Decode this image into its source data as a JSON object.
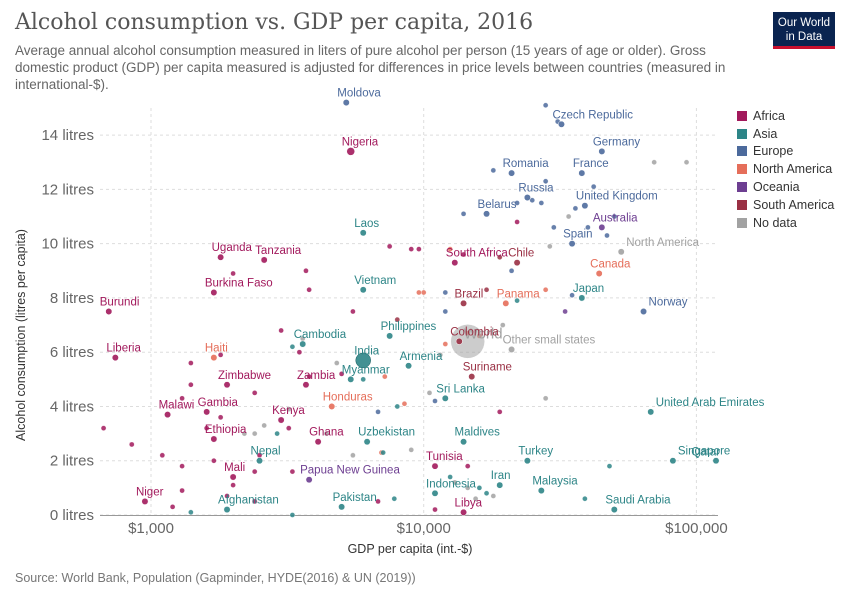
{
  "header": {
    "title": "Alcohol consumption vs. GDP per capita, 2016",
    "subtitle": "Average annual alcohol consumption measured in liters of pure alcohol per person (15 years of age or older). Gross domestic product (GDP) per capita measured is adjusted for differences in price levels between countries (measured in international-$)."
  },
  "logo": {
    "line1": "Our World",
    "line2": "in Data"
  },
  "footer": {
    "source": "Source: World Bank, Population (Gapminder, HYDE(2016) & UN (2019))"
  },
  "colors": {
    "Africa": "#a2195c",
    "Asia": "#2d8587",
    "Europe": "#4c6a9c",
    "North America": "#e56e5a",
    "Oceania": "#6d3e91",
    "South America": "#9a3044",
    "No data": "#a2a2a2"
  },
  "chart_data": {
    "type": "scatter",
    "title": "Alcohol consumption vs. GDP per capita, 2016",
    "xlabel": "GDP per capita (int.-$)",
    "ylabel": "Alcohol consumption (litres per capita)",
    "x_scale": "log",
    "xlim": [
      650,
      120000
    ],
    "ylim": [
      0,
      15
    ],
    "x_ticks": [
      {
        "value": 1000,
        "label": "$1,000"
      },
      {
        "value": 10000,
        "label": "$10,000"
      },
      {
        "value": 100000,
        "label": "$100,000"
      }
    ],
    "y_ticks": [
      {
        "value": 0,
        "label": "0 litres"
      },
      {
        "value": 2,
        "label": "2 litres"
      },
      {
        "value": 4,
        "label": "4 litres"
      },
      {
        "value": 6,
        "label": "6 litres"
      },
      {
        "value": 8,
        "label": "8 litres"
      },
      {
        "value": 10,
        "label": "10 litres"
      },
      {
        "value": 12,
        "label": "12 litres"
      },
      {
        "value": 14,
        "label": "14 litres"
      }
    ],
    "grid": true,
    "legend_position": "right",
    "legend": [
      "Africa",
      "Asia",
      "Europe",
      "North America",
      "Oceania",
      "South America",
      "No data"
    ],
    "labeled_points": [
      {
        "name": "Moldova",
        "region": "Europe",
        "x": 5200,
        "y": 15.2
      },
      {
        "name": "Czech Republic",
        "region": "Europe",
        "x": 32000,
        "y": 14.4
      },
      {
        "name": "Nigeria",
        "region": "Africa",
        "x": 5400,
        "y": 13.4
      },
      {
        "name": "Germany",
        "region": "Europe",
        "x": 45000,
        "y": 13.4
      },
      {
        "name": "Romania",
        "region": "Europe",
        "x": 21000,
        "y": 12.6
      },
      {
        "name": "France",
        "region": "Europe",
        "x": 38000,
        "y": 12.6
      },
      {
        "name": "Russia",
        "region": "Europe",
        "x": 24000,
        "y": 11.7
      },
      {
        "name": "Belarus",
        "region": "Europe",
        "x": 17000,
        "y": 11.1
      },
      {
        "name": "United Kingdom",
        "region": "Europe",
        "x": 39000,
        "y": 11.4
      },
      {
        "name": "Australia",
        "region": "Oceania",
        "x": 45000,
        "y": 10.6
      },
      {
        "name": "Laos",
        "region": "Asia",
        "x": 6000,
        "y": 10.4
      },
      {
        "name": "Spain",
        "region": "Europe",
        "x": 35000,
        "y": 10.0
      },
      {
        "name": "North America",
        "region": "No data",
        "x": 53000,
        "y": 9.7
      },
      {
        "name": "Uganda",
        "region": "Africa",
        "x": 1800,
        "y": 9.5
      },
      {
        "name": "Tanzania",
        "region": "Africa",
        "x": 2600,
        "y": 9.4
      },
      {
        "name": "South Africa",
        "region": "Africa",
        "x": 13000,
        "y": 9.3
      },
      {
        "name": "Chile",
        "region": "South America",
        "x": 22000,
        "y": 9.3
      },
      {
        "name": "Canada",
        "region": "North America",
        "x": 44000,
        "y": 8.9
      },
      {
        "name": "Vietnam",
        "region": "Asia",
        "x": 6000,
        "y": 8.3
      },
      {
        "name": "Burkina Faso",
        "region": "Africa",
        "x": 1700,
        "y": 8.2
      },
      {
        "name": "Brazil",
        "region": "South America",
        "x": 14000,
        "y": 7.8
      },
      {
        "name": "Panama",
        "region": "North America",
        "x": 20000,
        "y": 7.8
      },
      {
        "name": "Japan",
        "region": "Asia",
        "x": 38000,
        "y": 8.0
      },
      {
        "name": "Burundi",
        "region": "Africa",
        "x": 700,
        "y": 7.5
      },
      {
        "name": "Norway",
        "region": "Europe",
        "x": 64000,
        "y": 7.5
      },
      {
        "name": "World",
        "region": "No data",
        "x": 14500,
        "y": 6.4
      },
      {
        "name": "Cambodia",
        "region": "Asia",
        "x": 3600,
        "y": 6.3
      },
      {
        "name": "Philippines",
        "region": "Asia",
        "x": 7500,
        "y": 6.6
      },
      {
        "name": "Other small states",
        "region": "No data",
        "x": 21000,
        "y": 6.1
      },
      {
        "name": "India",
        "region": "Asia",
        "x": 6000,
        "y": 5.7
      },
      {
        "name": "Liberia",
        "region": "Africa",
        "x": 740,
        "y": 5.8
      },
      {
        "name": "Haiti",
        "region": "North America",
        "x": 1700,
        "y": 5.8
      },
      {
        "name": "Colombia",
        "region": "South America",
        "x": 13500,
        "y": 6.4
      },
      {
        "name": "Armenia",
        "region": "Asia",
        "x": 8800,
        "y": 5.5
      },
      {
        "name": "Suriname",
        "region": "South America",
        "x": 15000,
        "y": 5.1
      },
      {
        "name": "Myanmar",
        "region": "Asia",
        "x": 5400,
        "y": 5.0
      },
      {
        "name": "Zimbabwe",
        "region": "Africa",
        "x": 1900,
        "y": 4.8
      },
      {
        "name": "Zambia",
        "region": "Africa",
        "x": 3700,
        "y": 4.8
      },
      {
        "name": "Sri Lanka",
        "region": "Asia",
        "x": 12000,
        "y": 4.3
      },
      {
        "name": "Honduras",
        "region": "North America",
        "x": 4600,
        "y": 4.0
      },
      {
        "name": "United Arab Emirates",
        "region": "Asia",
        "x": 68000,
        "y": 3.8
      },
      {
        "name": "Malawi",
        "region": "Africa",
        "x": 1150,
        "y": 3.7
      },
      {
        "name": "Gambia",
        "region": "Africa",
        "x": 1600,
        "y": 3.8
      },
      {
        "name": "Kenya",
        "region": "Africa",
        "x": 3000,
        "y": 3.5
      },
      {
        "name": "Ethiopia",
        "region": "Africa",
        "x": 1700,
        "y": 2.8
      },
      {
        "name": "Ghana",
        "region": "Africa",
        "x": 4100,
        "y": 2.7
      },
      {
        "name": "Uzbekistan",
        "region": "Asia",
        "x": 6200,
        "y": 2.7
      },
      {
        "name": "Maldives",
        "region": "Asia",
        "x": 14000,
        "y": 2.7
      },
      {
        "name": "Nepal",
        "region": "Asia",
        "x": 2500,
        "y": 2.0
      },
      {
        "name": "Tunisia",
        "region": "Africa",
        "x": 11000,
        "y": 1.8
      },
      {
        "name": "Turkey",
        "region": "Asia",
        "x": 24000,
        "y": 2.0
      },
      {
        "name": "Singapore",
        "region": "Asia",
        "x": 82000,
        "y": 2.0
      },
      {
        "name": "Qatar",
        "region": "Asia",
        "x": 118000,
        "y": 2.0
      },
      {
        "name": "Mali",
        "region": "Africa",
        "x": 2000,
        "y": 1.4
      },
      {
        "name": "Papua New Guinea",
        "region": "Oceania",
        "x": 3800,
        "y": 1.3
      },
      {
        "name": "Iran",
        "region": "Asia",
        "x": 19000,
        "y": 1.1
      },
      {
        "name": "Malaysia",
        "region": "Asia",
        "x": 27000,
        "y": 0.9
      },
      {
        "name": "Indonesia",
        "region": "Asia",
        "x": 11000,
        "y": 0.8
      },
      {
        "name": "Niger",
        "region": "Africa",
        "x": 950,
        "y": 0.5
      },
      {
        "name": "Pakistan",
        "region": "Asia",
        "x": 5000,
        "y": 0.3
      },
      {
        "name": "Afghanistan",
        "region": "Asia",
        "x": 1900,
        "y": 0.2
      },
      {
        "name": "Saudi Arabia",
        "region": "Asia",
        "x": 50000,
        "y": 0.2
      },
      {
        "name": "Libya",
        "region": "Africa",
        "x": 14000,
        "y": 0.1
      }
    ],
    "unlabeled_points": [
      {
        "region": "Europe",
        "x": 28000,
        "y": 15.1
      },
      {
        "region": "Europe",
        "x": 31000,
        "y": 14.5
      },
      {
        "region": "No data",
        "x": 70000,
        "y": 13.0
      },
      {
        "region": "No data",
        "x": 92000,
        "y": 13.0
      },
      {
        "region": "Europe",
        "x": 18000,
        "y": 12.7
      },
      {
        "region": "Europe",
        "x": 28000,
        "y": 12.3
      },
      {
        "region": "Europe",
        "x": 25000,
        "y": 11.6
      },
      {
        "region": "Europe",
        "x": 27000,
        "y": 11.5
      },
      {
        "region": "Europe",
        "x": 22000,
        "y": 11.5
      },
      {
        "region": "Europe",
        "x": 36000,
        "y": 11.3
      },
      {
        "region": "Europe",
        "x": 42000,
        "y": 12.1
      },
      {
        "region": "Europe",
        "x": 14000,
        "y": 11.1
      },
      {
        "region": "Africa",
        "x": 22000,
        "y": 10.8
      },
      {
        "region": "Europe",
        "x": 30000,
        "y": 10.6
      },
      {
        "region": "Europe",
        "x": 50000,
        "y": 11.0
      },
      {
        "region": "No data",
        "x": 34000,
        "y": 11.0
      },
      {
        "region": "Europe",
        "x": 40000,
        "y": 10.6
      },
      {
        "region": "No data",
        "x": 29000,
        "y": 9.9
      },
      {
        "region": "Europe",
        "x": 47000,
        "y": 10.3
      },
      {
        "region": "Africa",
        "x": 7500,
        "y": 9.9
      },
      {
        "region": "Africa",
        "x": 9000,
        "y": 9.8
      },
      {
        "region": "Africa",
        "x": 9600,
        "y": 9.8
      },
      {
        "region": "Africa",
        "x": 14000,
        "y": 9.6
      },
      {
        "region": "North America",
        "x": 12500,
        "y": 9.8
      },
      {
        "region": "South America",
        "x": 19000,
        "y": 9.5
      },
      {
        "region": "Europe",
        "x": 21000,
        "y": 9.0
      },
      {
        "region": "Africa",
        "x": 3700,
        "y": 9.0
      },
      {
        "region": "Africa",
        "x": 2000,
        "y": 8.9
      },
      {
        "region": "Africa",
        "x": 3800,
        "y": 8.3
      },
      {
        "region": "Europe",
        "x": 12000,
        "y": 8.2
      },
      {
        "region": "North America",
        "x": 10000,
        "y": 8.2
      },
      {
        "region": "North America",
        "x": 9600,
        "y": 8.2
      },
      {
        "region": "Asia",
        "x": 22000,
        "y": 7.9
      },
      {
        "region": "South America",
        "x": 17000,
        "y": 8.3
      },
      {
        "region": "North America",
        "x": 28000,
        "y": 8.3
      },
      {
        "region": "Europe",
        "x": 35000,
        "y": 8.1
      },
      {
        "region": "Africa",
        "x": 5500,
        "y": 7.5
      },
      {
        "region": "Oceania",
        "x": 33000,
        "y": 7.5
      },
      {
        "region": "South America",
        "x": 8000,
        "y": 7.2
      },
      {
        "region": "Europe",
        "x": 12000,
        "y": 7.5
      },
      {
        "region": "No data",
        "x": 19500,
        "y": 7.0
      },
      {
        "region": "Africa",
        "x": 3000,
        "y": 6.8
      },
      {
        "region": "No data",
        "x": 3600,
        "y": 6.5
      },
      {
        "region": "Asia",
        "x": 3300,
        "y": 6.2
      },
      {
        "region": "Africa",
        "x": 3500,
        "y": 6.0
      },
      {
        "region": "Africa",
        "x": 1800,
        "y": 5.9
      },
      {
        "region": "Africa",
        "x": 1400,
        "y": 5.6
      },
      {
        "region": "North America",
        "x": 12000,
        "y": 6.3
      },
      {
        "region": "North America",
        "x": 14500,
        "y": 6.7
      },
      {
        "region": "North America",
        "x": 16000,
        "y": 6.6
      },
      {
        "region": "No data",
        "x": 11500,
        "y": 5.9
      },
      {
        "region": "No data",
        "x": 4800,
        "y": 5.6
      },
      {
        "region": "Africa",
        "x": 5000,
        "y": 5.2
      },
      {
        "region": "Africa",
        "x": 3800,
        "y": 5.1
      },
      {
        "region": "North America",
        "x": 7200,
        "y": 5.1
      },
      {
        "region": "Asia",
        "x": 6000,
        "y": 5.0
      },
      {
        "region": "Africa",
        "x": 1400,
        "y": 4.8
      },
      {
        "region": "Africa",
        "x": 2400,
        "y": 4.5
      },
      {
        "region": "Africa",
        "x": 1300,
        "y": 4.3
      },
      {
        "region": "No data",
        "x": 10500,
        "y": 4.5
      },
      {
        "region": "North America",
        "x": 8500,
        "y": 4.1
      },
      {
        "region": "Asia",
        "x": 8000,
        "y": 4.0
      },
      {
        "region": "Europe",
        "x": 6800,
        "y": 3.8
      },
      {
        "region": "Europe",
        "x": 11000,
        "y": 4.2
      },
      {
        "region": "No data",
        "x": 28000,
        "y": 4.3
      },
      {
        "region": "Africa",
        "x": 19000,
        "y": 3.8
      },
      {
        "region": "Africa",
        "x": 1800,
        "y": 3.6
      },
      {
        "region": "No data",
        "x": 3200,
        "y": 3.9
      },
      {
        "region": "No data",
        "x": 2600,
        "y": 3.3
      },
      {
        "region": "Africa",
        "x": 1600,
        "y": 3.2
      },
      {
        "region": "No data",
        "x": 2400,
        "y": 3.0
      },
      {
        "region": "Africa",
        "x": 670,
        "y": 3.2
      },
      {
        "region": "Africa",
        "x": 850,
        "y": 2.6
      },
      {
        "region": "Asia",
        "x": 2900,
        "y": 3.0
      },
      {
        "region": "No data",
        "x": 2200,
        "y": 3.0
      },
      {
        "region": "Africa",
        "x": 3200,
        "y": 3.2
      },
      {
        "region": "No data",
        "x": 4400,
        "y": 3.0
      },
      {
        "region": "North America",
        "x": 7000,
        "y": 2.3
      },
      {
        "region": "Africa",
        "x": 2500,
        "y": 2.2
      },
      {
        "region": "No data",
        "x": 5500,
        "y": 2.2
      },
      {
        "region": "Asia",
        "x": 7100,
        "y": 2.3
      },
      {
        "region": "No data",
        "x": 9000,
        "y": 2.4
      },
      {
        "region": "Africa",
        "x": 1100,
        "y": 2.2
      },
      {
        "region": "Africa",
        "x": 1300,
        "y": 1.8
      },
      {
        "region": "Africa",
        "x": 1700,
        "y": 2.0
      },
      {
        "region": "Africa",
        "x": 2400,
        "y": 1.6
      },
      {
        "region": "Africa",
        "x": 3300,
        "y": 1.6
      },
      {
        "region": "Asia",
        "x": 12500,
        "y": 1.4
      },
      {
        "region": "Africa",
        "x": 14500,
        "y": 1.8
      },
      {
        "region": "Asia",
        "x": 48000,
        "y": 1.8
      },
      {
        "region": "No data",
        "x": 13000,
        "y": 1.2
      },
      {
        "region": "No data",
        "x": 14500,
        "y": 1.0
      },
      {
        "region": "Asia",
        "x": 16000,
        "y": 1.0
      },
      {
        "region": "No data",
        "x": 15500,
        "y": 0.6
      },
      {
        "region": "Asia",
        "x": 17000,
        "y": 0.8
      },
      {
        "region": "No data",
        "x": 18000,
        "y": 0.7
      },
      {
        "region": "Africa",
        "x": 2000,
        "y": 1.1
      },
      {
        "region": "Africa",
        "x": 1300,
        "y": 0.9
      },
      {
        "region": "Africa",
        "x": 1900,
        "y": 0.7
      },
      {
        "region": "Africa",
        "x": 2400,
        "y": 0.5
      },
      {
        "region": "Africa",
        "x": 6800,
        "y": 0.5
      },
      {
        "region": "Asia",
        "x": 7800,
        "y": 0.6
      },
      {
        "region": "Asia",
        "x": 1400,
        "y": 0.1
      },
      {
        "region": "Asia",
        "x": 3300,
        "y": 0.0
      },
      {
        "region": "Africa",
        "x": 11000,
        "y": 0.2
      },
      {
        "region": "Africa",
        "x": 1200,
        "y": 0.3
      },
      {
        "region": "Asia",
        "x": 39000,
        "y": 0.6
      }
    ],
    "large_points": [
      "India",
      "World"
    ]
  }
}
